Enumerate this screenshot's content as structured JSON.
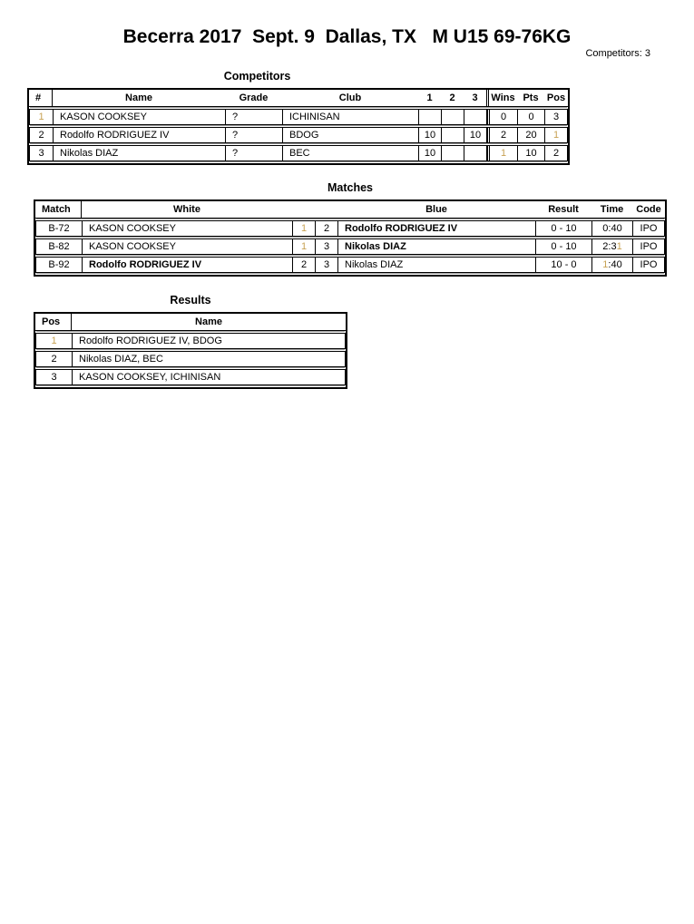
{
  "header": {
    "title": "Becerra 2017  Sept. 9  Dallas, TX   M U15 69-76KG",
    "competitors_count": "Competitors: 3"
  },
  "colors": {
    "gold": "#c8a254",
    "shadow": "#9e9e9e",
    "border": "#000000"
  },
  "competitors": {
    "title": "Competitors",
    "headers": [
      "#",
      "Name",
      "Grade",
      "Club",
      "1",
      "2",
      "3",
      "Wins",
      "Pts",
      "Pos"
    ],
    "rows": [
      [
        "1",
        "KASON COOKSEY",
        "?",
        "ICHINISAN",
        "",
        "",
        "",
        "0",
        "0",
        "3"
      ],
      [
        "2",
        "Rodolfo RODRIGUEZ IV",
        "?",
        "BDOG",
        "10",
        "",
        "10",
        "2",
        "20",
        "1"
      ],
      [
        "3",
        "Nikolas DIAZ",
        "?",
        "BEC",
        "10",
        "",
        "",
        "1",
        "10",
        "2"
      ]
    ]
  },
  "matches": {
    "title": "Matches",
    "headers": {
      "match": "Match",
      "white": "White",
      "blue": "Blue",
      "result": "Result",
      "time": "Time",
      "code": "Code"
    },
    "rows": [
      {
        "match": "B-72",
        "white": "KASON COOKSEY",
        "white_num": "1",
        "blue_num": "2",
        "blue": "Rodolfo RODRIGUEZ IV",
        "result": "0 - 10",
        "time_pre": "0:40",
        "time_gold": "",
        "time_post": "",
        "code": "IPO"
      },
      {
        "match": "B-82",
        "white": "KASON COOKSEY",
        "white_num": "1",
        "blue_num": "3",
        "blue": "Nikolas DIAZ",
        "result": "0 - 10",
        "time_pre": "2:3",
        "time_gold": "1",
        "time_post": "",
        "code": "IPO"
      },
      {
        "match": "B-92",
        "white": "Rodolfo RODRIGUEZ IV",
        "white_num": "2",
        "blue_num": "3",
        "blue": "Nikolas DIAZ",
        "result": "10 - 0",
        "time_pre": "",
        "time_gold": "1",
        "time_post": ":40",
        "code": "IPO"
      }
    ]
  },
  "results": {
    "title": "Results",
    "headers": [
      "Pos",
      "Name"
    ],
    "rows": [
      [
        "1",
        "Rodolfo RODRIGUEZ IV, BDOG"
      ],
      [
        "2",
        "Nikolas DIAZ, BEC"
      ],
      [
        "3",
        "KASON COOKSEY, ICHINISAN"
      ]
    ]
  }
}
